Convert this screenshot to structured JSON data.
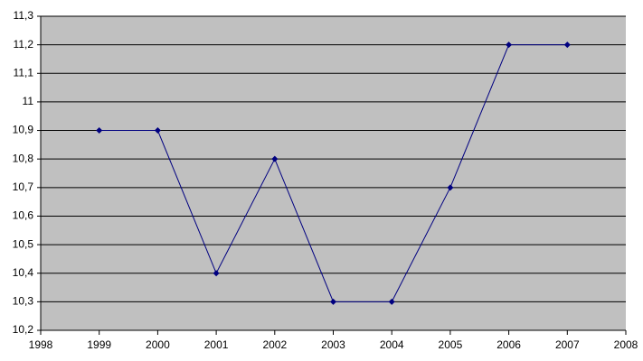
{
  "chart_data": {
    "type": "line",
    "x": [
      1999,
      2000,
      2001,
      2002,
      2003,
      2004,
      2005,
      2006,
      2007
    ],
    "series": [
      {
        "color": "#000080",
        "values": [
          10.9,
          10.9,
          10.4,
          10.8,
          10.3,
          10.3,
          10.7,
          11.2,
          11.2
        ]
      }
    ],
    "xlim": [
      1998,
      2008
    ],
    "xticks": [
      1998,
      1999,
      2000,
      2001,
      2002,
      2003,
      2004,
      2005,
      2006,
      2007,
      2008
    ],
    "ylim": [
      10.2,
      11.3
    ],
    "yticks": [
      {
        "value": 10.2,
        "label": "10,2"
      },
      {
        "value": 10.3,
        "label": "10,3"
      },
      {
        "value": 10.4,
        "label": "10,4"
      },
      {
        "value": 10.5,
        "label": "10,5"
      },
      {
        "value": 10.6,
        "label": "10,6"
      },
      {
        "value": 10.7,
        "label": "10,7"
      },
      {
        "value": 10.8,
        "label": "10,8"
      },
      {
        "value": 10.9,
        "label": "10,9"
      },
      11,
      {
        "value": 11.1,
        "label": "11,1"
      },
      {
        "value": 11.2,
        "label": "11,2"
      },
      {
        "value": 11.3,
        "label": "11,3"
      }
    ],
    "grid": true,
    "plot_background": "#c0c0c0"
  }
}
